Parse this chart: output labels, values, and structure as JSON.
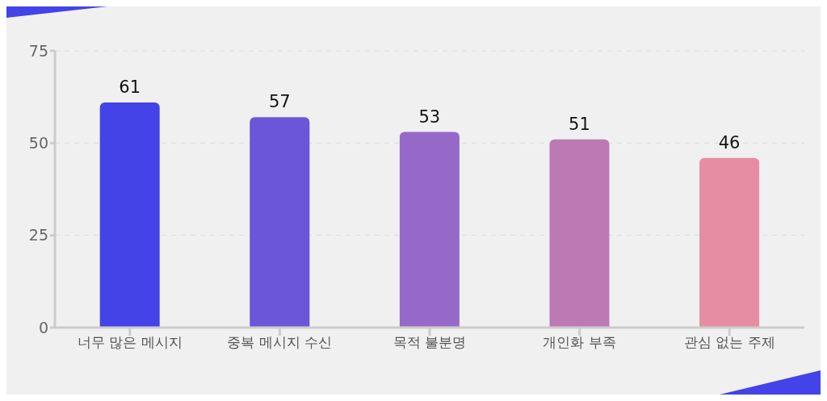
{
  "chart_data": {
    "type": "bar",
    "categories": [
      "너무 많은 메시지",
      "중복 메시지 수신",
      "목적 불분명",
      "개인화 부족",
      "관심 없는 주제"
    ],
    "values": [
      61,
      57,
      53,
      51,
      46
    ],
    "colors": [
      "#4343e8",
      "#6b55d8",
      "#9669c8",
      "#bd79b4",
      "#e68ca3"
    ],
    "ylim": [
      0,
      75
    ],
    "yticks": [
      0,
      25,
      50,
      75
    ],
    "grid": "y",
    "data_labels": true
  }
}
